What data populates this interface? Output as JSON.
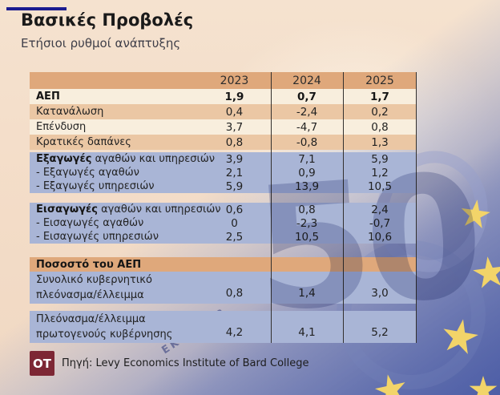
{
  "header": {
    "title": "Βασικές Προβολές",
    "subtitle": "Ετήσιοι ρυθμοί ανάπτυξης"
  },
  "table": {
    "years": [
      "2023",
      "2024",
      "2025"
    ],
    "rows": [
      {
        "kind": "r-years years tanhdr"
      },
      {
        "kind": "r-a cream",
        "label": "ΑΕΠ",
        "bold_label": true,
        "bold_values": true,
        "values": [
          "1,9",
          "0,7",
          "1,7"
        ]
      },
      {
        "kind": "r-a tan",
        "label": "Κατανάλωση",
        "values": [
          "0,4",
          "-2,4",
          "0,2"
        ]
      },
      {
        "kind": "r-a cream",
        "label": "Επένδυση",
        "values": [
          "3,7",
          "-4,7",
          "0,8"
        ]
      },
      {
        "kind": "r-a tan",
        "label": "Κρατικές δαπάνες",
        "values": [
          "0,8",
          "-0,8",
          "1,3"
        ]
      },
      {
        "kind": "gap gap-s"
      },
      {
        "kind": "r-b blue",
        "label_bold": "Εξαγωγές",
        "label_rest": " αγαθών και υπηρεσιών",
        "values": [
          "3,9",
          "7,1",
          "5,9"
        ]
      },
      {
        "kind": "r-b blue",
        "label": "- Εξαγωγές αγαθών",
        "values": [
          "2,1",
          "0,9",
          "1,2"
        ]
      },
      {
        "kind": "r-b blue",
        "label": "- Εξαγωγές υπηρεσιών",
        "values": [
          "5,9",
          "13,9",
          "10,5"
        ]
      },
      {
        "kind": "gap gap-m"
      },
      {
        "kind": "r-b blue",
        "label_bold": "Εισαγωγές",
        "label_rest": " αγαθών και υπηρεσιών",
        "values": [
          "0,6",
          "0,8",
          "2,4"
        ]
      },
      {
        "kind": "r-b blue",
        "label": "- Εισαγωγές αγαθών",
        "values": [
          "0",
          "-2,3",
          "-0,7"
        ]
      },
      {
        "kind": "r-b blue",
        "label": "- Εισαγωγές υπηρεσιών",
        "values": [
          "2,5",
          "10,5",
          "10,6"
        ]
      },
      {
        "kind": "gap gap-l"
      },
      {
        "kind": "r-pct tanhdr",
        "label": "Ποσοστό του ΑΕΠ",
        "bold_label": true,
        "values": [
          "",
          "",
          ""
        ]
      },
      {
        "kind": "r-two blue",
        "label_lines": [
          "Συνολικό κυβερνητικό",
          "πλεόνασμα/έλλειμμα"
        ],
        "values": [
          "0,8",
          "1,4",
          "3,0"
        ]
      },
      {
        "kind": "gap gap-xs"
      },
      {
        "kind": "r-two blue",
        "label_lines": [
          "Πλεόνασμα/έλλειμμα",
          "πρωτογενούς κυβέρνησης"
        ],
        "values": [
          "4,2",
          "4,1",
          "5,2"
        ]
      }
    ]
  },
  "chart_data": {
    "type": "table",
    "title": "Βασικές Προβολές",
    "subtitle": "Ετήσιοι ρυθμοί ανάπτυξης",
    "columns": [
      "",
      "2023",
      "2024",
      "2025"
    ],
    "rows": [
      [
        "ΑΕΠ",
        "1,9",
        "0,7",
        "1,7"
      ],
      [
        "Κατανάλωση",
        "0,4",
        "-2,4",
        "0,2"
      ],
      [
        "Επένδυση",
        "3,7",
        "-4,7",
        "0,8"
      ],
      [
        "Κρατικές δαπάνες",
        "0,8",
        "-0,8",
        "1,3"
      ],
      [
        "Εξαγωγές αγαθών και υπηρεσιών",
        "3,9",
        "7,1",
        "5,9"
      ],
      [
        "- Εξαγωγές αγαθών",
        "2,1",
        "0,9",
        "1,2"
      ],
      [
        "- Εξαγωγές υπηρεσιών",
        "5,9",
        "13,9",
        "10,5"
      ],
      [
        "Εισαγωγές αγαθών και υπηρεσιών",
        "0,6",
        "0,8",
        "2,4"
      ],
      [
        "- Εισαγωγές αγαθών",
        "0",
        "-2,3",
        "-0,7"
      ],
      [
        "- Εισαγωγές υπηρεσιών",
        "2,5",
        "10,5",
        "10,6"
      ],
      [
        "Ποσοστό του ΑΕΠ",
        "",
        "",
        ""
      ],
      [
        "Συνολικό κυβερνητικό πλεόνασμα/έλλειμμα",
        "0,8",
        "1,4",
        "3,0"
      ],
      [
        "Πλεόνασμα/έλλειμμα πρωτογενούς κυβέρνησης",
        "4,2",
        "4,1",
        "5,2"
      ]
    ]
  },
  "footer": {
    "logo": "OT",
    "source": "Πηγή: Levy Economics Institute of Bard College"
  },
  "background": {
    "watermark_large": "50",
    "watermark_small": "ΕΚΡ 2002"
  },
  "colors": {
    "accent": "#1c1c90",
    "row_hdr": "#d69d70",
    "row_cream": "#f8eedd",
    "row_tan": "#ebc7a4",
    "row_tanhdr": "#dfa87b",
    "row_blue": "#a9b5d6",
    "line": "#33302e",
    "logo_bg": "#7d2734",
    "flag_blue": "#5e6fae",
    "star_yellow": "#f2d469",
    "page_bg": "#f3dcc7"
  }
}
